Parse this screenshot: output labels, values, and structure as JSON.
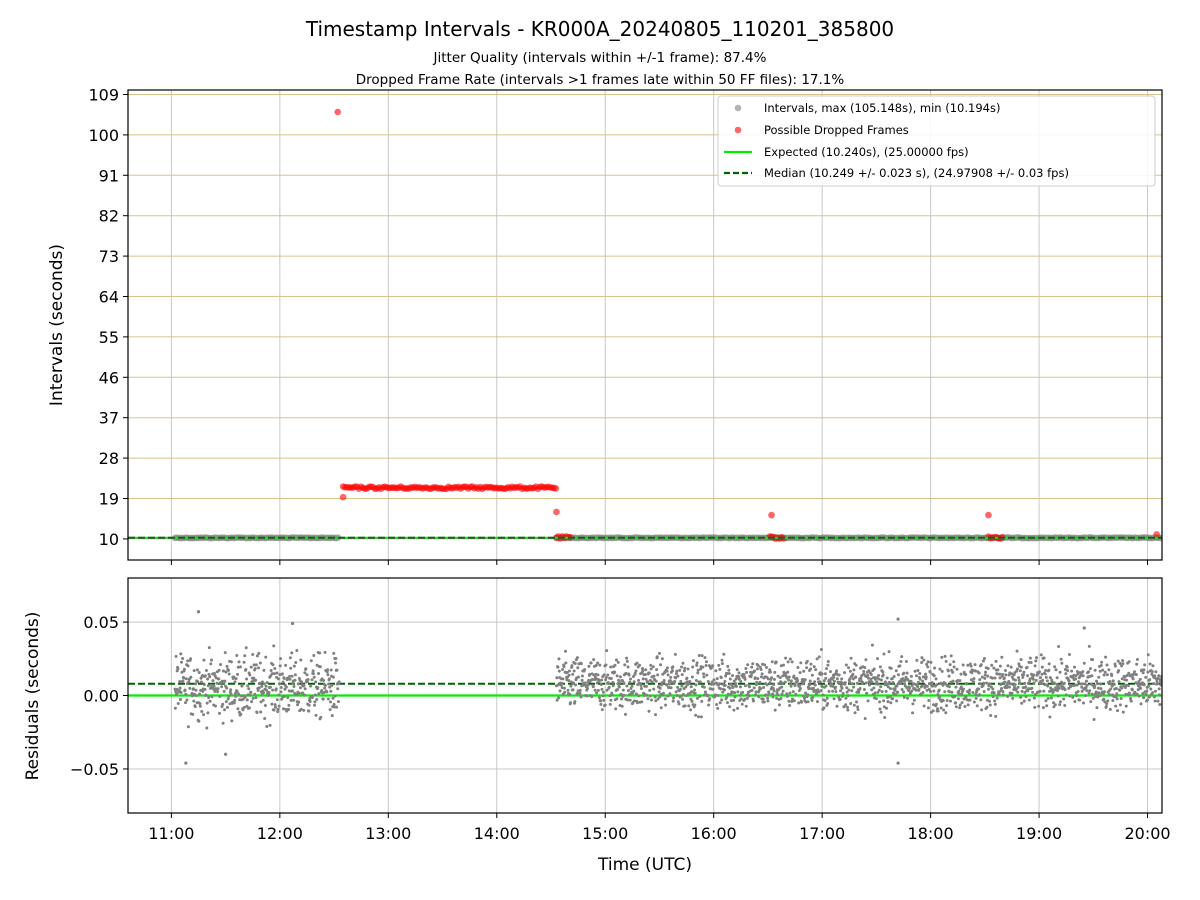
{
  "chart_data": [
    {
      "type": "scatter",
      "title": "Timestamp Intervals - KR000A_20240805_110201_385800",
      "subtitles": [
        "Jitter Quality (intervals within +/-1 frame): 87.4%",
        "Dropped Frame Rate (intervals >1 frames late within 50 FF files): 17.1%"
      ],
      "xlabel": "",
      "ylabel": "Intervals (seconds)",
      "ylim": [
        5.3,
        110
      ],
      "xlim": [
        "10:36",
        "20:08"
      ],
      "yticks": [
        10,
        19,
        28,
        37,
        46,
        55,
        64,
        73,
        82,
        91,
        100,
        109
      ],
      "grid": true,
      "legend_position": "top-right",
      "legend": [
        "Intervals, max (105.148s), min (10.194s)",
        "Possible Dropped Frames",
        "Expected (10.240s), (25.00000 fps)",
        "Median (10.249 +/- 0.023 s), (24.97908 +/- 0.03 fps)"
      ],
      "intervals_segments": [
        {
          "start": "11:02",
          "end": "12:33",
          "value": 10.24
        },
        {
          "start": "14:33",
          "end": "20:08",
          "value": 10.24
        }
      ],
      "dropped_frame_clusters": [
        {
          "start": "12:35",
          "end": "14:33",
          "value": 21.4
        },
        {
          "start": "14:33",
          "end": "14:41",
          "value": 10.3
        },
        {
          "start": "16:31",
          "end": "16:39",
          "value": 10.3
        },
        {
          "start": "18:32",
          "end": "18:40",
          "value": 10.3
        }
      ],
      "dropped_frame_points": [
        {
          "x": "12:32",
          "y": 105.1
        },
        {
          "x": "12:35",
          "y": 19.3
        },
        {
          "x": "14:33",
          "y": 16.0
        },
        {
          "x": "16:32",
          "y": 15.3
        },
        {
          "x": "18:32",
          "y": 15.3
        },
        {
          "x": "20:05",
          "y": 11.0
        }
      ],
      "expected": 10.24,
      "median": 10.249
    },
    {
      "type": "scatter",
      "xlabel": "Time (UTC)",
      "ylabel": "Residuals (seconds)",
      "ylim": [
        -0.08,
        0.08
      ],
      "xlim": [
        "10:36",
        "20:08"
      ],
      "yticks": [
        -0.05,
        0.0,
        0.05
      ],
      "ytick_labels": [
        "−0.05",
        "0.00",
        "0.05"
      ],
      "xticks": [
        "11:00",
        "12:00",
        "13:00",
        "14:00",
        "15:00",
        "16:00",
        "17:00",
        "18:00",
        "19:00",
        "20:00"
      ],
      "grid": true,
      "expected_residual": 0.0,
      "median_residual": 0.008,
      "segments": [
        {
          "start": "11:02",
          "end": "12:33",
          "center": 0.006,
          "spread": 0.018
        },
        {
          "start": "14:33",
          "end": "20:08",
          "center": 0.008,
          "spread": 0.015
        }
      ],
      "outliers": [
        {
          "x": "11:15",
          "y": 0.057
        },
        {
          "x": "11:08",
          "y": -0.046
        },
        {
          "x": "11:30",
          "y": -0.04
        },
        {
          "x": "12:07",
          "y": 0.049
        },
        {
          "x": "17:42",
          "y": 0.052
        },
        {
          "x": "17:42",
          "y": -0.046
        },
        {
          "x": "19:25",
          "y": 0.046
        }
      ]
    }
  ],
  "colors": {
    "intervals": "#808080",
    "dropped": "#ff0000",
    "expected": "#00ee00",
    "median": "#006400",
    "median_top": "#404040",
    "grid_v": "#c8c8c8",
    "grid_h_top": "#d8c48a",
    "grid_h_bottom": "#c8c8c8"
  }
}
